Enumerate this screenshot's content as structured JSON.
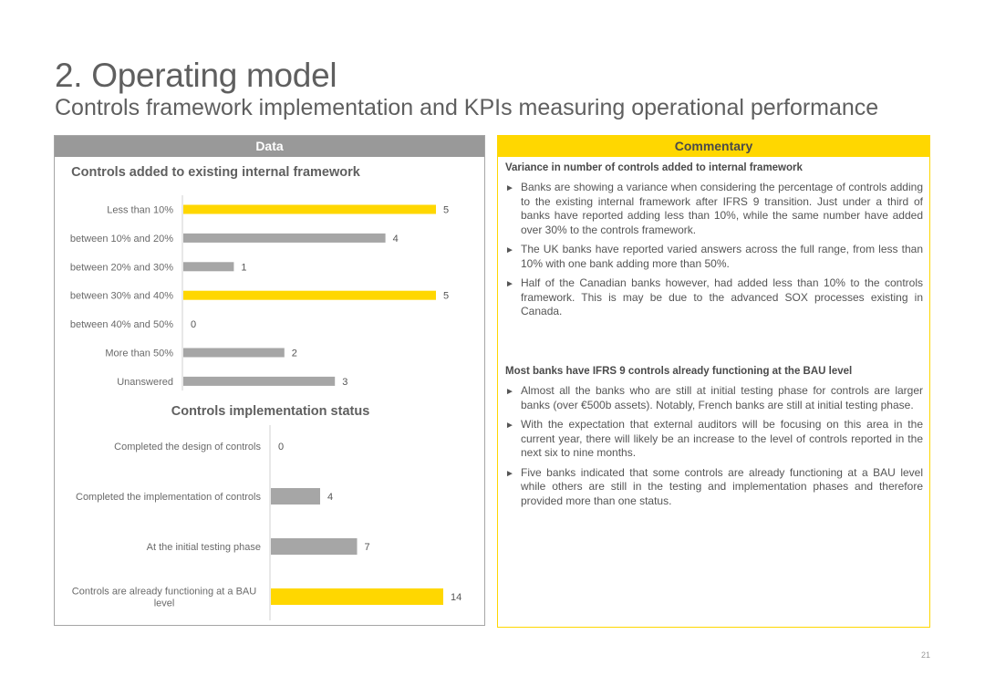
{
  "title": "2. Operating model",
  "subtitle": "Controls framework implementation and KPIs measuring operational performance",
  "data_header": "Data",
  "commentary_header": "Commentary",
  "page_number": "21",
  "colors": {
    "highlight": "#ffd700",
    "bar_grey": "#a6a6a6",
    "header_grey": "#999999"
  },
  "chart_data": [
    {
      "type": "bar",
      "orientation": "horizontal",
      "title": "Controls added to existing internal framework",
      "categories": [
        "Less than 10%",
        "between 10% and 20%",
        "between 20% and 30%",
        "between 30% and 40%",
        "between 40% and 50%",
        "More than 50%",
        "Unanswered"
      ],
      "values": [
        5,
        4,
        1,
        5,
        0,
        2,
        3
      ],
      "highlighted": [
        true,
        false,
        false,
        true,
        false,
        false,
        false
      ],
      "xlim": [
        0,
        5
      ]
    },
    {
      "type": "bar",
      "orientation": "horizontal",
      "title": "Controls implementation status",
      "categories": [
        "Completed the design of controls",
        "Completed the implementation of controls",
        "At the initial testing phase",
        "Controls are already functioning at a BAU level"
      ],
      "values": [
        0,
        4,
        7,
        14
      ],
      "highlighted": [
        false,
        false,
        false,
        true
      ],
      "xlim": [
        0,
        14
      ]
    }
  ],
  "commentary": {
    "section1": {
      "heading": "Variance in number of controls added to internal framework",
      "bullets": [
        "Banks are showing a variance when considering the percentage of controls adding to the existing internal framework after IFRS 9 transition. Just under a third of banks have reported adding less than 10%, while the same number have added over 30% to the controls framework.",
        "The UK banks have reported varied answers across the full range, from less than 10% with one bank adding more than 50%.",
        "Half of the Canadian banks however, had added less than 10% to the controls framework. This is may be due to the advanced SOX processes existing in Canada."
      ]
    },
    "section2": {
      "heading": "Most banks have IFRS 9 controls already functioning at the BAU level",
      "bullets": [
        "Almost all the banks who are still at initial testing phase for controls are larger banks (over €500b assets). Notably, French banks are still at initial testing phase.",
        "With the expectation that external auditors will be focusing on this area in the current year, there will likely be an increase to the level of controls reported in the next six to nine months.",
        "Five banks indicated that some controls are already functioning at a BAU level while others are still in the testing and implementation phases and therefore provided more than one status."
      ]
    }
  }
}
